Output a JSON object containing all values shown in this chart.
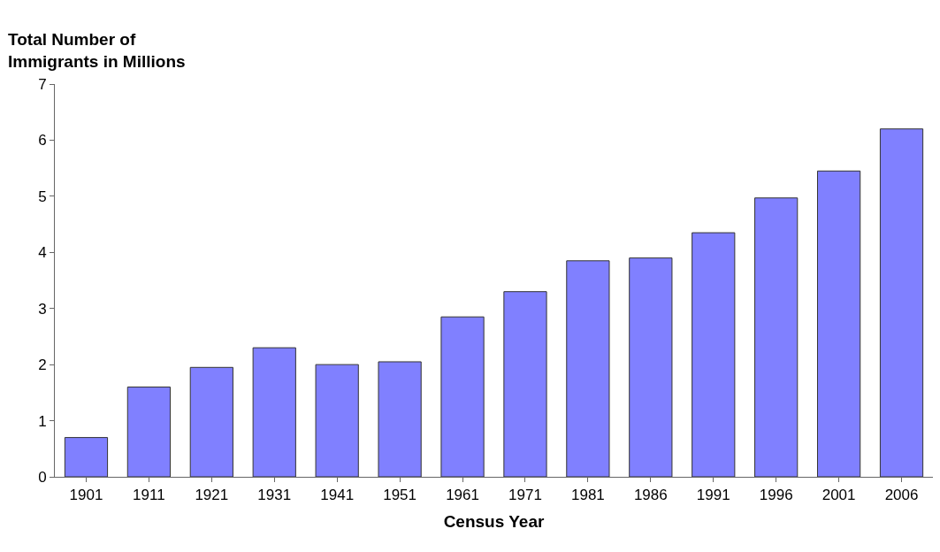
{
  "chart_data": {
    "type": "bar",
    "ylabel": "Total Number of\nImmigrants in Millions",
    "xlabel": "Census Year",
    "categories": [
      "1901",
      "1911",
      "1921",
      "1931",
      "1941",
      "1951",
      "1961",
      "1971",
      "1981",
      "1986",
      "1991",
      "1996",
      "2001",
      "2006"
    ],
    "values": [
      0.7,
      1.6,
      1.95,
      2.3,
      2.0,
      2.05,
      2.85,
      3.3,
      3.85,
      3.9,
      4.35,
      4.97,
      5.45,
      6.2
    ],
    "color": "#8080ff",
    "ylim": [
      0,
      7
    ],
    "yticks": [
      0,
      1,
      2,
      3,
      4,
      5,
      6,
      7
    ],
    "grid": false
  }
}
